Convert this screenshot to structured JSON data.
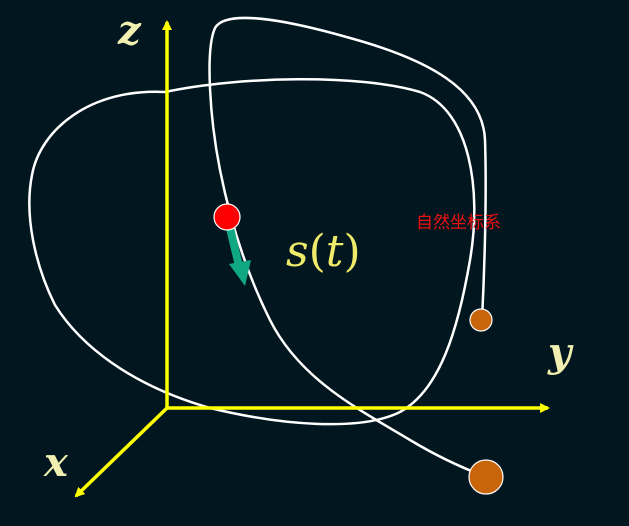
{
  "axes": {
    "x_label": "x",
    "y_label": "y",
    "z_label": "z"
  },
  "curve": {
    "label_s": "s",
    "label_open": "(",
    "label_t": "t",
    "label_close": ")"
  },
  "caption": "自然坐标系",
  "colors": {
    "background": "#021620",
    "axis": "#ffff00",
    "axis_label": "#f2f0b0",
    "curve": "#ffffff",
    "point_moving": "#ff0000",
    "point_end": "#c8640a",
    "tangent_arrow": "#0fa882",
    "curve_label": "#f0ea6a",
    "caption": "#ee1111"
  }
}
